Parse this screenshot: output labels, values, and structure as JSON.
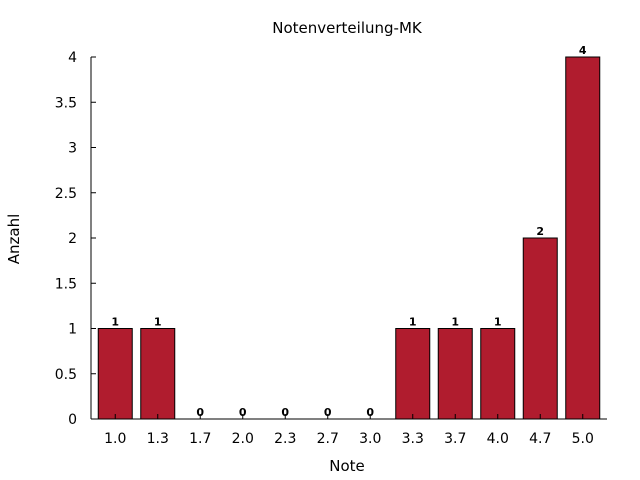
{
  "chart_data": {
    "type": "bar",
    "title": "Notenverteilung-MK",
    "xlabel": "Note",
    "ylabel": "Anzahl",
    "categories": [
      "1.0",
      "1.3",
      "1.7",
      "2.0",
      "2.3",
      "2.7",
      "3.0",
      "3.3",
      "3.7",
      "4.0",
      "4.7",
      "5.0"
    ],
    "values": [
      1,
      1,
      0,
      0,
      0,
      0,
      0,
      1,
      1,
      1,
      2,
      4
    ],
    "data_labels": [
      "1",
      "1",
      "0",
      "0",
      "0",
      "0",
      "0",
      "1",
      "1",
      "1",
      "2",
      "4"
    ],
    "ylim": [
      0,
      4
    ],
    "yticks": [
      0,
      0.5,
      1,
      1.5,
      2,
      2.5,
      3,
      3.5,
      4
    ],
    "ytick_labels": [
      "0",
      "0.5",
      "1",
      "1.5",
      "2",
      "2.5",
      "3",
      "3.5",
      "4"
    ],
    "grid": false,
    "legend": "none",
    "bar_color": "#b01c2e",
    "bar_edge_color": "#000000"
  }
}
